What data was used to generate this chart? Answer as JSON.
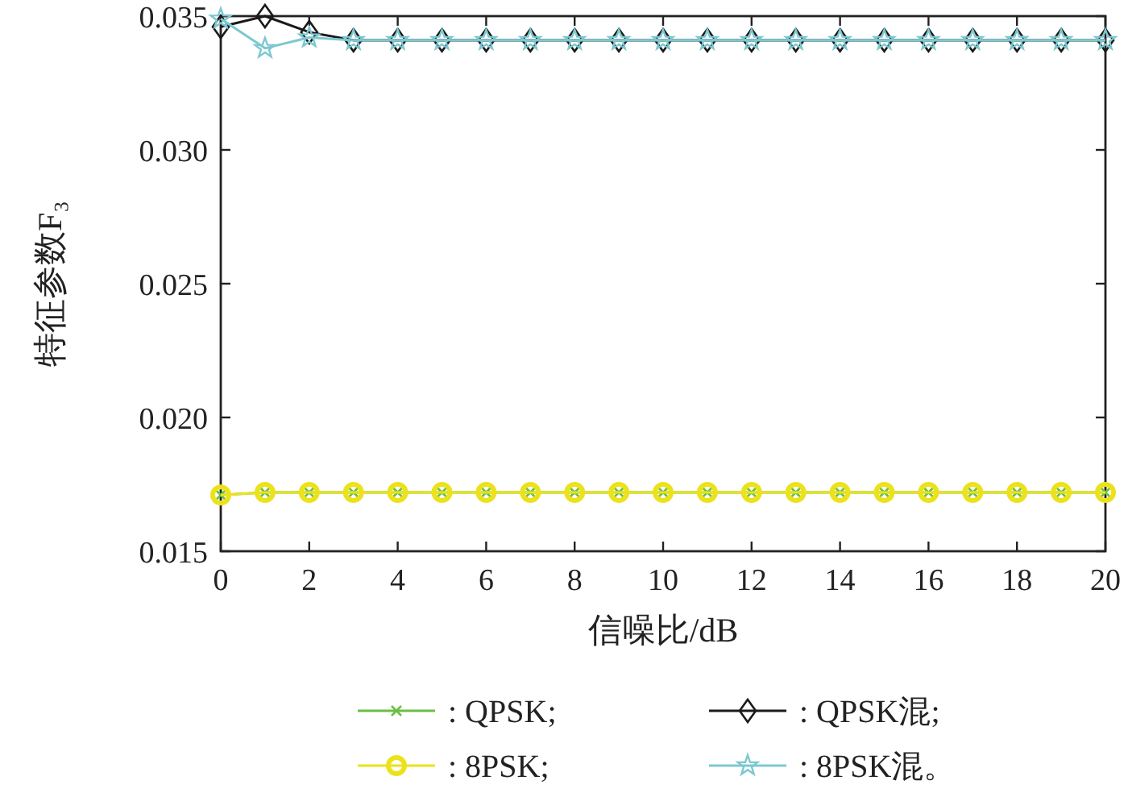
{
  "chart_data": {
    "type": "line",
    "xlabel": "信噪比/dB",
    "ylabel": "特征参数F₃",
    "x": [
      0,
      1,
      2,
      3,
      4,
      5,
      6,
      7,
      8,
      9,
      10,
      11,
      12,
      13,
      14,
      15,
      16,
      17,
      18,
      19,
      20
    ],
    "xlim": [
      0,
      20
    ],
    "xticks": [
      0,
      2,
      4,
      6,
      8,
      10,
      12,
      14,
      16,
      18,
      20
    ],
    "ylim": [
      0.015,
      0.035
    ],
    "yticks": [
      {
        "value": 0.015,
        "label": "0.015"
      },
      {
        "value": 0.02,
        "label": "0.020"
      },
      {
        "value": 0.025,
        "label": "0.025"
      },
      {
        "value": 0.03,
        "label": "0.030"
      },
      {
        "value": 0.035,
        "label": "0.035"
      }
    ],
    "grid": false,
    "legend": "bottom",
    "series": [
      {
        "name": ": QPSK;",
        "color": "#6abf45",
        "marker": "cross",
        "values": [
          0.0171,
          0.0172,
          0.0172,
          0.0172,
          0.0172,
          0.0172,
          0.0172,
          0.0172,
          0.0172,
          0.0172,
          0.0172,
          0.0172,
          0.0172,
          0.0172,
          0.0172,
          0.0172,
          0.0172,
          0.0172,
          0.0172,
          0.0172,
          0.0172
        ]
      },
      {
        "name": ": QPSK混;",
        "color": "#1a1a1a",
        "marker": "diamond",
        "values": [
          0.0346,
          0.035,
          0.0344,
          0.0341,
          0.0341,
          0.0341,
          0.0341,
          0.0341,
          0.0341,
          0.0341,
          0.0341,
          0.0341,
          0.0341,
          0.0341,
          0.0341,
          0.0341,
          0.0341,
          0.0341,
          0.0341,
          0.0341,
          0.0341
        ]
      },
      {
        "name": ": 8PSK;",
        "color": "#ece21c",
        "marker": "circle",
        "values": [
          0.0171,
          0.0172,
          0.0172,
          0.0172,
          0.0172,
          0.0172,
          0.0172,
          0.0172,
          0.0172,
          0.0172,
          0.0172,
          0.0172,
          0.0172,
          0.0172,
          0.0172,
          0.0172,
          0.0172,
          0.0172,
          0.0172,
          0.0172,
          0.0172
        ]
      },
      {
        "name": ": 8PSK混。",
        "color": "#7cc8d0",
        "marker": "star",
        "values": [
          0.0349,
          0.0338,
          0.0342,
          0.0341,
          0.0341,
          0.0341,
          0.0341,
          0.0341,
          0.0341,
          0.0341,
          0.0341,
          0.0341,
          0.0341,
          0.0341,
          0.0341,
          0.0341,
          0.0341,
          0.0341,
          0.0341,
          0.0341,
          0.0341
        ]
      }
    ]
  }
}
